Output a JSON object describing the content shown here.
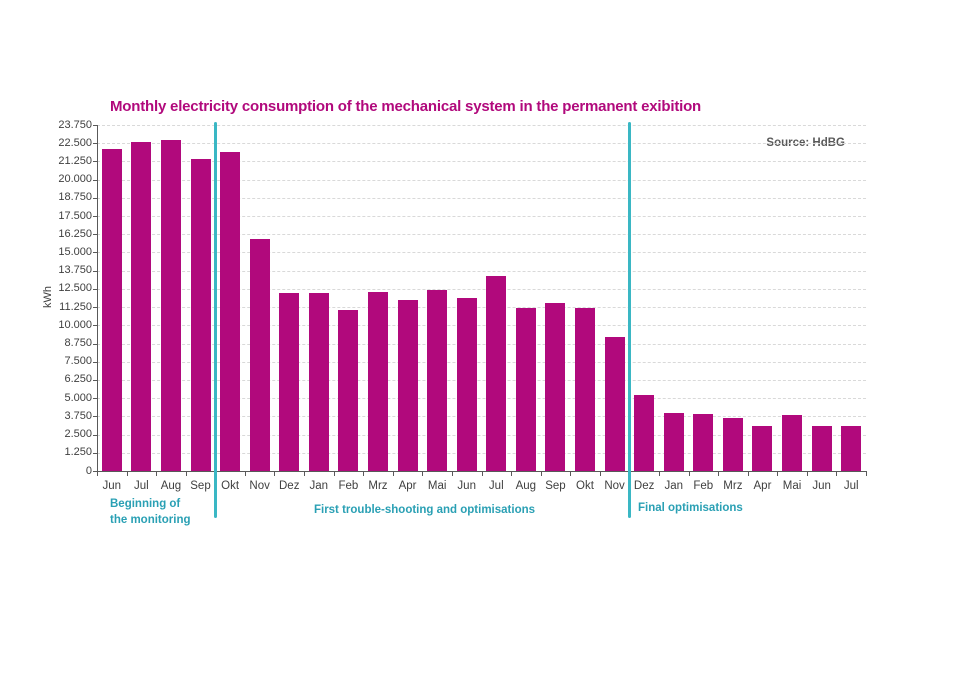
{
  "chart_data": {
    "type": "bar",
    "title": "Monthly electricity consumption of the mechanical system in the permanent exibition",
    "source": "Source: HdBG",
    "ylabel": "kWh",
    "xlabel": "",
    "categories": [
      "Jun",
      "Jul",
      "Aug",
      "Sep",
      "Okt",
      "Nov",
      "Dez",
      "Jan",
      "Feb",
      "Mrz",
      "Apr",
      "Mai",
      "Jun",
      "Jul",
      "Aug",
      "Sep",
      "Okt",
      "Nov",
      "Dez",
      "Jan",
      "Feb",
      "Mrz",
      "Apr",
      "Mai",
      "Jun",
      "Jul"
    ],
    "values": [
      22100,
      22550,
      22700,
      21400,
      21900,
      15950,
      12250,
      12200,
      11050,
      12300,
      11750,
      12400,
      11900,
      13400,
      11200,
      11500,
      11200,
      9200,
      5200,
      3950,
      3900,
      3650,
      3100,
      3850,
      3100,
      3100
    ],
    "ylim": [
      0,
      23750
    ],
    "y_step": 1250,
    "y_tick_labels": [
      "0",
      "1.250",
      "2.500",
      "3.750",
      "5.000",
      "6.250",
      "7.500",
      "8.750",
      "10.000",
      "11.250",
      "12.500",
      "13.750",
      "15.000",
      "16.250",
      "17.500",
      "18.750",
      "20.000",
      "21.250",
      "22.500",
      "23.750"
    ],
    "grid": "horizontal-dashed",
    "legend": "none",
    "dividers": [
      {
        "after_category_index": 3
      },
      {
        "after_category_index": 17
      }
    ],
    "annotations": [
      {
        "text": "Beginning of\nthe monitoring",
        "section": "before-first-divider"
      },
      {
        "text": "First trouble-shooting and optimisations",
        "section": "between-dividers"
      },
      {
        "text": "Final optimisations",
        "section": "after-second-divider"
      }
    ],
    "colors": {
      "bar": "#b1097c",
      "title": "#b1097c",
      "divider_line": "#3ab7c4",
      "annotation_text": "#2aa0b4",
      "axis_line": "#595959",
      "gridline": "#d9d9d9",
      "tick_label": "#404040",
      "source_text": "#595959"
    }
  }
}
